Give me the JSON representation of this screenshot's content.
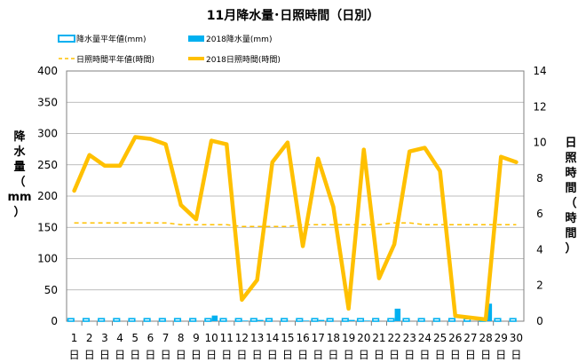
{
  "chart_data": {
    "type": "bar+line",
    "title": "11月降水量･日照時間（日別）",
    "categories": [
      "1",
      "2",
      "3",
      "4",
      "5",
      "6",
      "7",
      "8",
      "9",
      "10",
      "11",
      "12",
      "13",
      "14",
      "15",
      "16",
      "17",
      "18",
      "19",
      "20",
      "21",
      "22",
      "23",
      "24",
      "25",
      "26",
      "27",
      "28",
      "29",
      "30"
    ],
    "category_suffix": "日",
    "y_left": {
      "label": "降水量（mm）",
      "label_chars": [
        "降",
        "水",
        "量",
        "（",
        "mm",
        "）"
      ],
      "ylim": [
        0,
        400
      ],
      "ticks": [
        0,
        50,
        100,
        150,
        200,
        250,
        300,
        350,
        400
      ]
    },
    "y_right": {
      "label": "日照時間（時間）",
      "label_chars": [
        "日",
        "照",
        "時",
        "間",
        "（",
        "時",
        "間",
        "）"
      ],
      "ylim": [
        0,
        14
      ],
      "ticks": [
        0,
        2,
        4,
        6,
        8,
        10,
        12,
        14
      ]
    },
    "grid": true,
    "legend_position": "top",
    "series": [
      {
        "name": "降水量平年値(mm)",
        "type": "bar",
        "axis": "left",
        "color": "#00b0f0",
        "style": "outline",
        "values": [
          4,
          4,
          4,
          4,
          4,
          4,
          4,
          4,
          4,
          4,
          4,
          4,
          4,
          4,
          4,
          4,
          4,
          4,
          4,
          4,
          4,
          4,
          4,
          4,
          4,
          4,
          4,
          4,
          4,
          4
        ]
      },
      {
        "name": "2018降水量(mm)",
        "type": "bar",
        "axis": "left",
        "color": "#00b0f0",
        "style": "filled",
        "values": [
          0,
          0,
          0,
          0,
          0,
          0,
          0,
          0,
          0,
          9,
          0,
          1,
          2,
          0,
          0,
          1,
          2,
          0,
          2,
          1,
          0,
          20,
          0,
          0,
          0,
          0,
          0,
          28,
          0,
          0
        ]
      },
      {
        "name": "日照時間平年値(時間)",
        "type": "line",
        "axis": "right",
        "color": "#ffc000",
        "style": "dashed",
        "values": [
          5.5,
          5.5,
          5.5,
          5.5,
          5.5,
          5.5,
          5.5,
          5.4,
          5.4,
          5.4,
          5.4,
          5.3,
          5.3,
          5.3,
          5.3,
          5.4,
          5.4,
          5.4,
          5.4,
          5.4,
          5.4,
          5.5,
          5.5,
          5.4,
          5.4,
          5.4,
          5.4,
          5.4,
          5.4,
          5.4
        ]
      },
      {
        "name": "2018日照時間(時間)",
        "type": "line",
        "axis": "right",
        "color": "#ffc000",
        "style": "solid",
        "values": [
          7.3,
          9.3,
          8.7,
          8.7,
          10.3,
          10.2,
          9.9,
          6.5,
          5.7,
          10.1,
          9.9,
          1.2,
          2.3,
          8.9,
          10.0,
          4.2,
          9.1,
          6.4,
          0.7,
          9.6,
          2.4,
          4.3,
          9.5,
          9.7,
          8.4,
          0.3,
          0.2,
          0.1,
          9.2,
          8.9
        ]
      }
    ]
  }
}
